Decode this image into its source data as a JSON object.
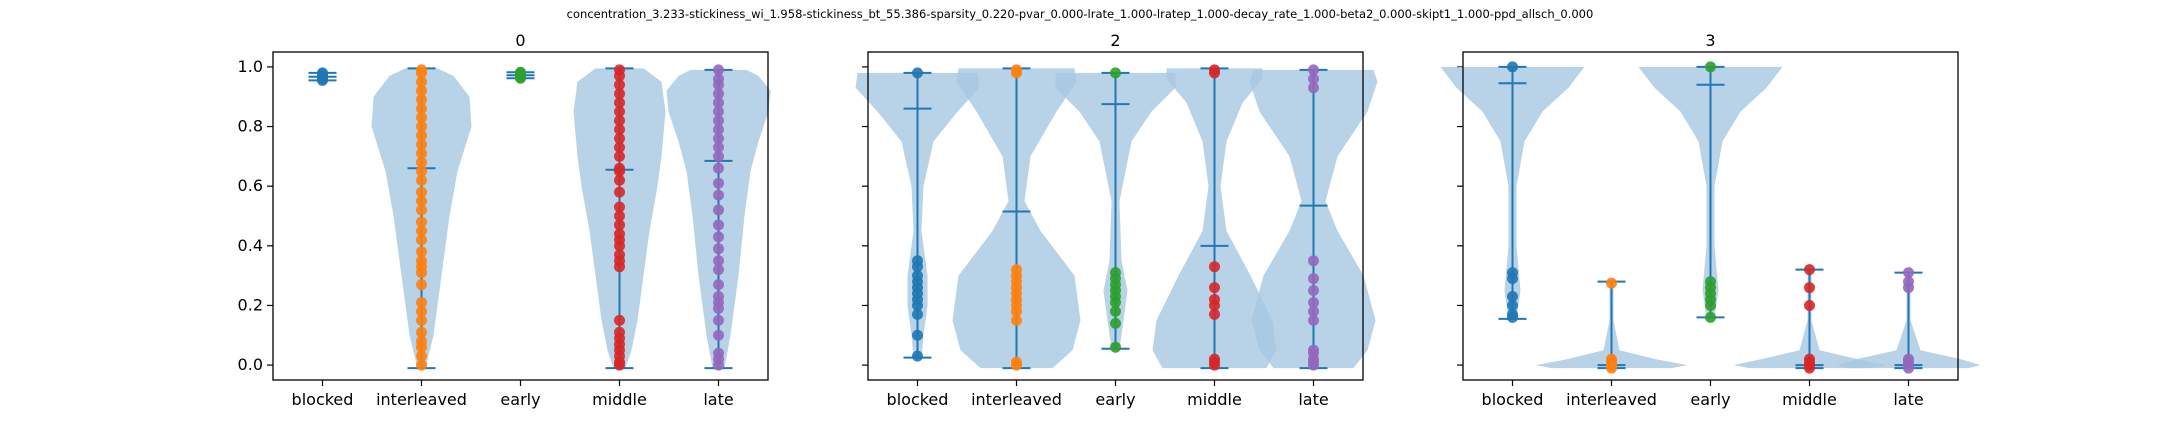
{
  "suptitle": "concentration_3.233-stickiness_wi_1.958-stickiness_bt_55.386-sparsity_0.220-pvar_0.000-lrate_1.000-lratep_1.000-decay_rate_1.000-beta2_0.000-skipt1_1.000-ppd_allsch_0.000",
  "colors": {
    "violin_fill": "#a6c8e2",
    "line": "#1f77b4",
    "blocked": "#1f77b4",
    "interleaved": "#ff7f0e",
    "early": "#2ca02c",
    "middle": "#d62728",
    "late": "#9467bd"
  },
  "chart_data": [
    {
      "type": "violin",
      "title": "0",
      "categories": [
        "blocked",
        "interleaved",
        "early",
        "middle",
        "late"
      ],
      "ylim": [
        -0.05,
        1.05
      ],
      "yticks": [
        0.0,
        0.2,
        0.4,
        0.6,
        0.8,
        1.0
      ],
      "ytick_labels": [
        "0.0",
        "0.2",
        "0.4",
        "0.6",
        "0.8",
        "1.0"
      ],
      "show_ytick_labels": true,
      "grid": false,
      "series": [
        {
          "category": "blocked",
          "min": 0.955,
          "max": 0.98,
          "mean": 0.967,
          "points": [
            0.955,
            0.96,
            0.965,
            0.97,
            0.975,
            0.98
          ],
          "violin": []
        },
        {
          "category": "interleaved",
          "min": -0.01,
          "max": 0.995,
          "mean": 0.66,
          "points": [
            0.0,
            0.03,
            0.06,
            0.08,
            0.11,
            0.15,
            0.18,
            0.21,
            0.27,
            0.31,
            0.33,
            0.35,
            0.38,
            0.42,
            0.45,
            0.48,
            0.52,
            0.55,
            0.58,
            0.62,
            0.65,
            0.68,
            0.71,
            0.74,
            0.77,
            0.8,
            0.83,
            0.86,
            0.89,
            0.92,
            0.95,
            0.98,
            0.99
          ],
          "violin": [
            [
              -0.01,
              0.02
            ],
            [
              0.1,
              0.06
            ],
            [
              0.3,
              0.1
            ],
            [
              0.5,
              0.14
            ],
            [
              0.65,
              0.18
            ],
            [
              0.8,
              0.25
            ],
            [
              0.9,
              0.24
            ],
            [
              0.97,
              0.16
            ],
            [
              0.995,
              0.08
            ]
          ]
        },
        {
          "category": "early",
          "min": 0.962,
          "max": 0.982,
          "mean": 0.972,
          "points": [
            0.962,
            0.967,
            0.972,
            0.977,
            0.982
          ],
          "violin": []
        },
        {
          "category": "middle",
          "min": -0.01,
          "max": 0.995,
          "mean": 0.655,
          "points": [
            0.0,
            0.01,
            0.03,
            0.05,
            0.07,
            0.09,
            0.11,
            0.15,
            0.33,
            0.35,
            0.37,
            0.4,
            0.42,
            0.44,
            0.47,
            0.5,
            0.53,
            0.58,
            0.62,
            0.65,
            0.66,
            0.7,
            0.73,
            0.76,
            0.79,
            0.82,
            0.85,
            0.88,
            0.91,
            0.94,
            0.97,
            0.99
          ],
          "violin": [
            [
              -0.01,
              0.03
            ],
            [
              0.05,
              0.06
            ],
            [
              0.15,
              0.09
            ],
            [
              0.3,
              0.12
            ],
            [
              0.45,
              0.15
            ],
            [
              0.6,
              0.19
            ],
            [
              0.7,
              0.21
            ],
            [
              0.85,
              0.23
            ],
            [
              0.95,
              0.21
            ],
            [
              0.995,
              0.12
            ]
          ]
        },
        {
          "category": "late",
          "min": -0.01,
          "max": 0.99,
          "mean": 0.685,
          "points": [
            0.0,
            0.02,
            0.04,
            0.1,
            0.15,
            0.19,
            0.21,
            0.23,
            0.27,
            0.32,
            0.35,
            0.39,
            0.43,
            0.47,
            0.52,
            0.57,
            0.61,
            0.66,
            0.7,
            0.73,
            0.76,
            0.79,
            0.82,
            0.85,
            0.88,
            0.91,
            0.94,
            0.96,
            0.99
          ],
          "violin": [
            [
              -0.01,
              0.03
            ],
            [
              0.1,
              0.06
            ],
            [
              0.3,
              0.1
            ],
            [
              0.5,
              0.13
            ],
            [
              0.65,
              0.16
            ],
            [
              0.75,
              0.2
            ],
            [
              0.85,
              0.25
            ],
            [
              0.92,
              0.26
            ],
            [
              0.97,
              0.2
            ],
            [
              0.99,
              0.14
            ]
          ]
        }
      ]
    },
    {
      "type": "violin",
      "title": "2",
      "categories": [
        "blocked",
        "interleaved",
        "early",
        "middle",
        "late"
      ],
      "ylim": [
        -0.05,
        1.05
      ],
      "yticks": [
        0.0,
        0.2,
        0.4,
        0.6,
        0.8,
        1.0
      ],
      "ytick_labels": [
        "0.0",
        "0.2",
        "0.4",
        "0.6",
        "0.8",
        "1.0"
      ],
      "show_ytick_labels": false,
      "grid": false,
      "series": [
        {
          "category": "blocked",
          "min": 0.025,
          "max": 0.98,
          "mean": 0.86,
          "points": [
            0.03,
            0.1,
            0.17,
            0.2,
            0.22,
            0.24,
            0.26,
            0.28,
            0.3,
            0.33,
            0.35,
            0.98
          ],
          "violin": [
            [
              0.025,
              0.02
            ],
            [
              0.1,
              0.03
            ],
            [
              0.2,
              0.05
            ],
            [
              0.3,
              0.05
            ],
            [
              0.45,
              0.02
            ],
            [
              0.6,
              0.03
            ],
            [
              0.75,
              0.08
            ],
            [
              0.85,
              0.2
            ],
            [
              0.93,
              0.31
            ],
            [
              0.98,
              0.3
            ]
          ]
        },
        {
          "category": "interleaved",
          "min": -0.01,
          "max": 0.995,
          "mean": 0.515,
          "points": [
            0.0,
            0.01,
            0.15,
            0.18,
            0.2,
            0.22,
            0.24,
            0.26,
            0.28,
            0.3,
            0.32,
            0.98,
            0.99
          ],
          "violin": [
            [
              -0.01,
              0.18
            ],
            [
              0.05,
              0.28
            ],
            [
              0.15,
              0.32
            ],
            [
              0.3,
              0.29
            ],
            [
              0.45,
              0.12
            ],
            [
              0.55,
              0.04
            ],
            [
              0.7,
              0.07
            ],
            [
              0.85,
              0.2
            ],
            [
              0.95,
              0.3
            ],
            [
              0.995,
              0.29
            ]
          ]
        },
        {
          "category": "early",
          "min": 0.055,
          "max": 0.98,
          "mean": 0.875,
          "points": [
            0.06,
            0.14,
            0.18,
            0.21,
            0.23,
            0.25,
            0.27,
            0.29,
            0.31,
            0.98
          ],
          "violin": [
            [
              0.055,
              0.02
            ],
            [
              0.15,
              0.04
            ],
            [
              0.25,
              0.06
            ],
            [
              0.35,
              0.03
            ],
            [
              0.55,
              0.02
            ],
            [
              0.75,
              0.08
            ],
            [
              0.85,
              0.18
            ],
            [
              0.93,
              0.3
            ],
            [
              0.98,
              0.3
            ]
          ]
        },
        {
          "category": "middle",
          "min": -0.01,
          "max": 0.995,
          "mean": 0.4,
          "points": [
            0.0,
            0.01,
            0.02,
            0.17,
            0.2,
            0.22,
            0.26,
            0.33,
            0.98,
            0.99
          ],
          "violin": [
            [
              -0.01,
              0.26
            ],
            [
              0.05,
              0.31
            ],
            [
              0.15,
              0.29
            ],
            [
              0.3,
              0.18
            ],
            [
              0.45,
              0.06
            ],
            [
              0.6,
              0.03
            ],
            [
              0.75,
              0.06
            ],
            [
              0.88,
              0.14
            ],
            [
              0.96,
              0.24
            ],
            [
              0.995,
              0.24
            ]
          ]
        },
        {
          "category": "late",
          "min": -0.01,
          "max": 0.99,
          "mean": 0.535,
          "points": [
            0.0,
            0.01,
            0.02,
            0.04,
            0.05,
            0.15,
            0.18,
            0.21,
            0.25,
            0.29,
            0.35,
            0.93,
            0.96,
            0.99
          ],
          "violin": [
            [
              -0.01,
              0.2
            ],
            [
              0.05,
              0.27
            ],
            [
              0.15,
              0.31
            ],
            [
              0.3,
              0.25
            ],
            [
              0.45,
              0.12
            ],
            [
              0.55,
              0.06
            ],
            [
              0.7,
              0.12
            ],
            [
              0.85,
              0.27
            ],
            [
              0.95,
              0.32
            ],
            [
              0.99,
              0.3
            ]
          ]
        }
      ]
    },
    {
      "type": "violin",
      "title": "3",
      "categories": [
        "blocked",
        "interleaved",
        "early",
        "middle",
        "late"
      ],
      "ylim": [
        -0.05,
        1.05
      ],
      "yticks": [
        0.0,
        0.2,
        0.4,
        0.6,
        0.8,
        1.0
      ],
      "ytick_labels": [
        "0.0",
        "0.2",
        "0.4",
        "0.6",
        "0.8",
        "1.0"
      ],
      "show_ytick_labels": false,
      "grid": false,
      "series": [
        {
          "category": "blocked",
          "min": 0.155,
          "max": 1.0,
          "mean": 0.945,
          "points": [
            0.16,
            0.17,
            0.2,
            0.23,
            0.29,
            0.31,
            1.0
          ],
          "violin": [
            [
              0.155,
              0.02
            ],
            [
              0.25,
              0.04
            ],
            [
              0.4,
              0.02
            ],
            [
              0.6,
              0.02
            ],
            [
              0.75,
              0.06
            ],
            [
              0.85,
              0.15
            ],
            [
              0.93,
              0.28
            ],
            [
              1.0,
              0.36
            ]
          ]
        },
        {
          "category": "interleaved",
          "min": -0.01,
          "max": 0.28,
          "mean": 0.0,
          "points": [
            -0.01,
            0.0,
            0.01,
            0.02,
            0.275
          ],
          "violin": [
            [
              -0.01,
              0.3
            ],
            [
              0.0,
              0.38
            ],
            [
              0.02,
              0.22
            ],
            [
              0.05,
              0.04
            ],
            [
              0.15,
              0.01
            ],
            [
              0.28,
              0.01
            ]
          ]
        },
        {
          "category": "early",
          "min": 0.16,
          "max": 1.0,
          "mean": 0.94,
          "points": [
            0.16,
            0.2,
            0.22,
            0.24,
            0.26,
            0.28,
            1.0
          ],
          "violin": [
            [
              0.16,
              0.02
            ],
            [
              0.25,
              0.04
            ],
            [
              0.4,
              0.02
            ],
            [
              0.6,
              0.02
            ],
            [
              0.75,
              0.06
            ],
            [
              0.85,
              0.15
            ],
            [
              0.93,
              0.28
            ],
            [
              1.0,
              0.36
            ]
          ]
        },
        {
          "category": "middle",
          "min": -0.01,
          "max": 0.32,
          "mean": 0.0,
          "points": [
            -0.01,
            0.0,
            0.01,
            0.02,
            0.2,
            0.26,
            0.32
          ],
          "violin": [
            [
              -0.01,
              0.3
            ],
            [
              0.0,
              0.38
            ],
            [
              0.02,
              0.24
            ],
            [
              0.05,
              0.05
            ],
            [
              0.15,
              0.01
            ],
            [
              0.32,
              0.01
            ]
          ]
        },
        {
          "category": "late",
          "min": -0.01,
          "max": 0.31,
          "mean": 0.0,
          "points": [
            -0.01,
            0.0,
            0.01,
            0.02,
            0.26,
            0.28,
            0.31
          ],
          "violin": [
            [
              -0.01,
              0.3
            ],
            [
              0.0,
              0.36
            ],
            [
              0.02,
              0.26
            ],
            [
              0.05,
              0.06
            ],
            [
              0.15,
              0.01
            ],
            [
              0.31,
              0.01
            ]
          ]
        }
      ]
    }
  ]
}
